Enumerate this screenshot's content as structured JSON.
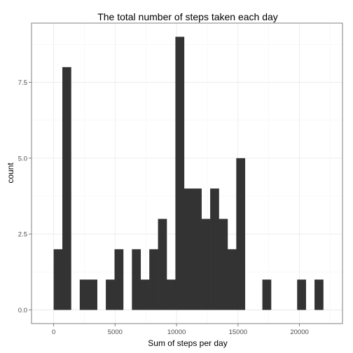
{
  "chart_data": {
    "type": "bar",
    "title": "The total number of steps taken each day",
    "xlabel": "Sum of steps per day",
    "ylabel": "count",
    "xlim": [
      -1800,
      23500
    ],
    "ylim": [
      -0.45,
      9.45
    ],
    "xticks": [
      0,
      5000,
      10000,
      15000,
      20000
    ],
    "xtick_labels": [
      "0",
      "5000",
      "10000",
      "15000",
      "20000"
    ],
    "yticks": [
      0,
      2.5,
      5,
      7.5
    ],
    "ytick_labels": [
      "0.0",
      "2.5",
      "5.0",
      "7.5"
    ],
    "bin_width": 707.5,
    "bin_start": 0,
    "values": [
      2,
      8,
      0,
      1,
      1,
      0,
      1,
      2,
      0,
      2,
      1,
      2,
      3,
      1,
      9,
      4,
      4,
      3,
      4,
      3,
      2,
      5,
      0,
      0,
      1,
      0,
      0,
      0,
      1,
      0,
      1
    ],
    "grid": true,
    "colors": {
      "bar": "#333333",
      "panel_border": "#7f7f7f",
      "grid_major": "#ebebeb",
      "grid_minor": "#f5f5f5"
    }
  }
}
